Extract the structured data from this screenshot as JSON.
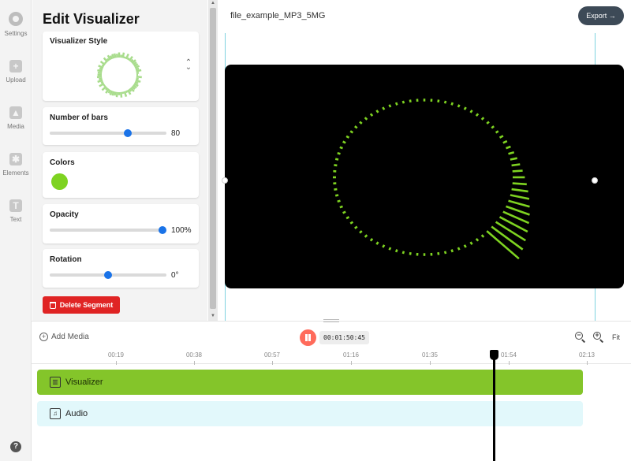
{
  "sidebar": {
    "items": [
      {
        "label": "Settings",
        "icon": "settings-icon"
      },
      {
        "label": "Upload",
        "icon": "upload-icon"
      },
      {
        "label": "Media",
        "icon": "image-icon"
      },
      {
        "label": "Elements",
        "icon": "elements-icon"
      },
      {
        "label": "Text",
        "icon": "text-icon"
      }
    ],
    "help_label": "?"
  },
  "panel": {
    "title": "Edit Visualizer",
    "style_label": "Visualizer Style",
    "bars": {
      "label": "Number of bars",
      "value": "80",
      "fraction": 0.67
    },
    "colors": {
      "label": "Colors",
      "color": "#7ed321"
    },
    "opacity": {
      "label": "Opacity",
      "value": "100%",
      "fraction": 1.0
    },
    "rotation": {
      "label": "Rotation",
      "value": "0°",
      "fraction": 0.5
    },
    "delete_label": "Delete Segment"
  },
  "preview": {
    "filename": "file_example_MP3_5MG",
    "export_label": "Export →",
    "visualizer_color": "#7ed321",
    "bar_count": 80
  },
  "timeline": {
    "add_media_label": "Add Media",
    "timecode": "00:01:50:45",
    "fit_label": "Fit",
    "ticks": [
      "00:19",
      "00:38",
      "00:57",
      "01:16",
      "01:35",
      "01:54",
      "02:13"
    ],
    "tracks": [
      {
        "label": "Visualizer",
        "icon": "chart-icon",
        "glyph": "▥"
      },
      {
        "label": "Audio",
        "icon": "music-note-icon",
        "glyph": "♫"
      }
    ],
    "playhead_time": "01:50:45"
  },
  "colors": {
    "accent_blue": "#1a73e8",
    "delete_red": "#e02424",
    "visualizer_green": "#84c52a",
    "audio_track": "#e2f8fb"
  }
}
